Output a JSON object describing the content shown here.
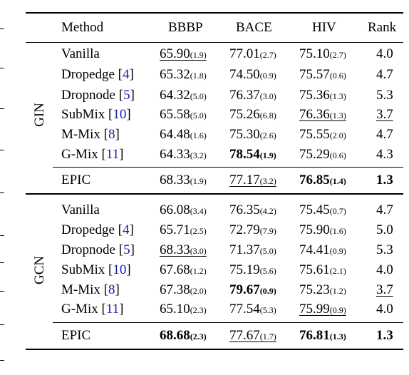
{
  "headers": {
    "method": "Method",
    "bbbp": "BBBP",
    "bace": "BACE",
    "hiv": "HIV",
    "rank": "Rank"
  },
  "groups": [
    {
      "name": "GIN",
      "rows": [
        {
          "method": "Vanilla",
          "ref": "",
          "bbbp": {
            "v": "65.90",
            "s": "(1.9)"
          },
          "bace": {
            "v": "77.01",
            "s": "(2.7)"
          },
          "hiv": {
            "v": "75.10",
            "s": "(2.7)"
          },
          "rank": "4.0"
        },
        {
          "method": "Dropedge",
          "ref": "4",
          "bbbp": {
            "v": "65.32",
            "s": "(1.8)"
          },
          "bace": {
            "v": "74.50",
            "s": "(0.9)"
          },
          "hiv": {
            "v": "75.57",
            "s": "(0.6)"
          },
          "rank": "4.7"
        },
        {
          "method": "Dropnode",
          "ref": "5",
          "bbbp": {
            "v": "64.32",
            "s": "(5.0)"
          },
          "bace": {
            "v": "76.37",
            "s": "(3.0)"
          },
          "hiv": {
            "v": "75.36",
            "s": "(1.3)"
          },
          "rank": "5.3"
        },
        {
          "method": "SubMix",
          "ref": "10",
          "bbbp": {
            "v": "65.58",
            "s": "(5.0)"
          },
          "bace": {
            "v": "75.26",
            "s": "(6.8)"
          },
          "hiv": {
            "v": "76.36",
            "s": "(1.3)"
          },
          "rank": "3.7"
        },
        {
          "method": "M-Mix",
          "ref": "8",
          "bbbp": {
            "v": "64.48",
            "s": "(1.6)"
          },
          "bace": {
            "v": "75.30",
            "s": "(2.6)"
          },
          "hiv": {
            "v": "75.55",
            "s": "(2.0)"
          },
          "rank": "4.7"
        },
        {
          "method": "G-Mix",
          "ref": "11",
          "bbbp": {
            "v": "64.33",
            "s": "(3.2)"
          },
          "bace": {
            "v": "78.54",
            "s": "(1.9)"
          },
          "hiv": {
            "v": "75.29",
            "s": "(0.6)"
          },
          "rank": "4.3"
        }
      ],
      "epic": {
        "method": "EPIC",
        "bbbp": {
          "v": "68.33",
          "s": "(1.9)"
        },
        "bace": {
          "v": "77.17",
          "s": "(3.2)"
        },
        "hiv": {
          "v": "76.85",
          "s": "(1.4)"
        },
        "rank": "1.3"
      }
    },
    {
      "name": "GCN",
      "rows": [
        {
          "method": "Vanilla",
          "ref": "",
          "bbbp": {
            "v": "66.08",
            "s": "(3.4)"
          },
          "bace": {
            "v": "76.35",
            "s": "(4.2)"
          },
          "hiv": {
            "v": "75.45",
            "s": "(0.7)"
          },
          "rank": "4.7"
        },
        {
          "method": "Dropedge",
          "ref": "4",
          "bbbp": {
            "v": "65.71",
            "s": "(2.5)"
          },
          "bace": {
            "v": "72.79",
            "s": "(7.9)"
          },
          "hiv": {
            "v": "75.90",
            "s": "(1.6)"
          },
          "rank": "5.0"
        },
        {
          "method": "Dropnode",
          "ref": "5",
          "bbbp": {
            "v": "68.33",
            "s": "(3.0)"
          },
          "bace": {
            "v": "71.37",
            "s": "(5.0)"
          },
          "hiv": {
            "v": "74.41",
            "s": "(0.9)"
          },
          "rank": "5.3"
        },
        {
          "method": "SubMix",
          "ref": "10",
          "bbbp": {
            "v": "67.68",
            "s": "(1.2)"
          },
          "bace": {
            "v": "75.19",
            "s": "(5.6)"
          },
          "hiv": {
            "v": "75.61",
            "s": "(2.1)"
          },
          "rank": "4.0"
        },
        {
          "method": "M-Mix",
          "ref": "8",
          "bbbp": {
            "v": "67.38",
            "s": "(2.0)"
          },
          "bace": {
            "v": "79.67",
            "s": "(0.9)"
          },
          "hiv": {
            "v": "75.23",
            "s": "(1.2)"
          },
          "rank": "3.7"
        },
        {
          "method": "G-Mix",
          "ref": "11",
          "bbbp": {
            "v": "65.10",
            "s": "(2.3)"
          },
          "bace": {
            "v": "77.54",
            "s": "(5.3)"
          },
          "hiv": {
            "v": "75.99",
            "s": "(0.9)"
          },
          "rank": "4.0"
        }
      ],
      "epic": {
        "method": "EPIC",
        "bbbp": {
          "v": "68.68",
          "s": "(2.3)"
        },
        "bace": {
          "v": "77.67",
          "s": "(1.7)"
        },
        "hiv": {
          "v": "76.81",
          "s": "(1.3)"
        },
        "rank": "1.3"
      }
    }
  ]
}
